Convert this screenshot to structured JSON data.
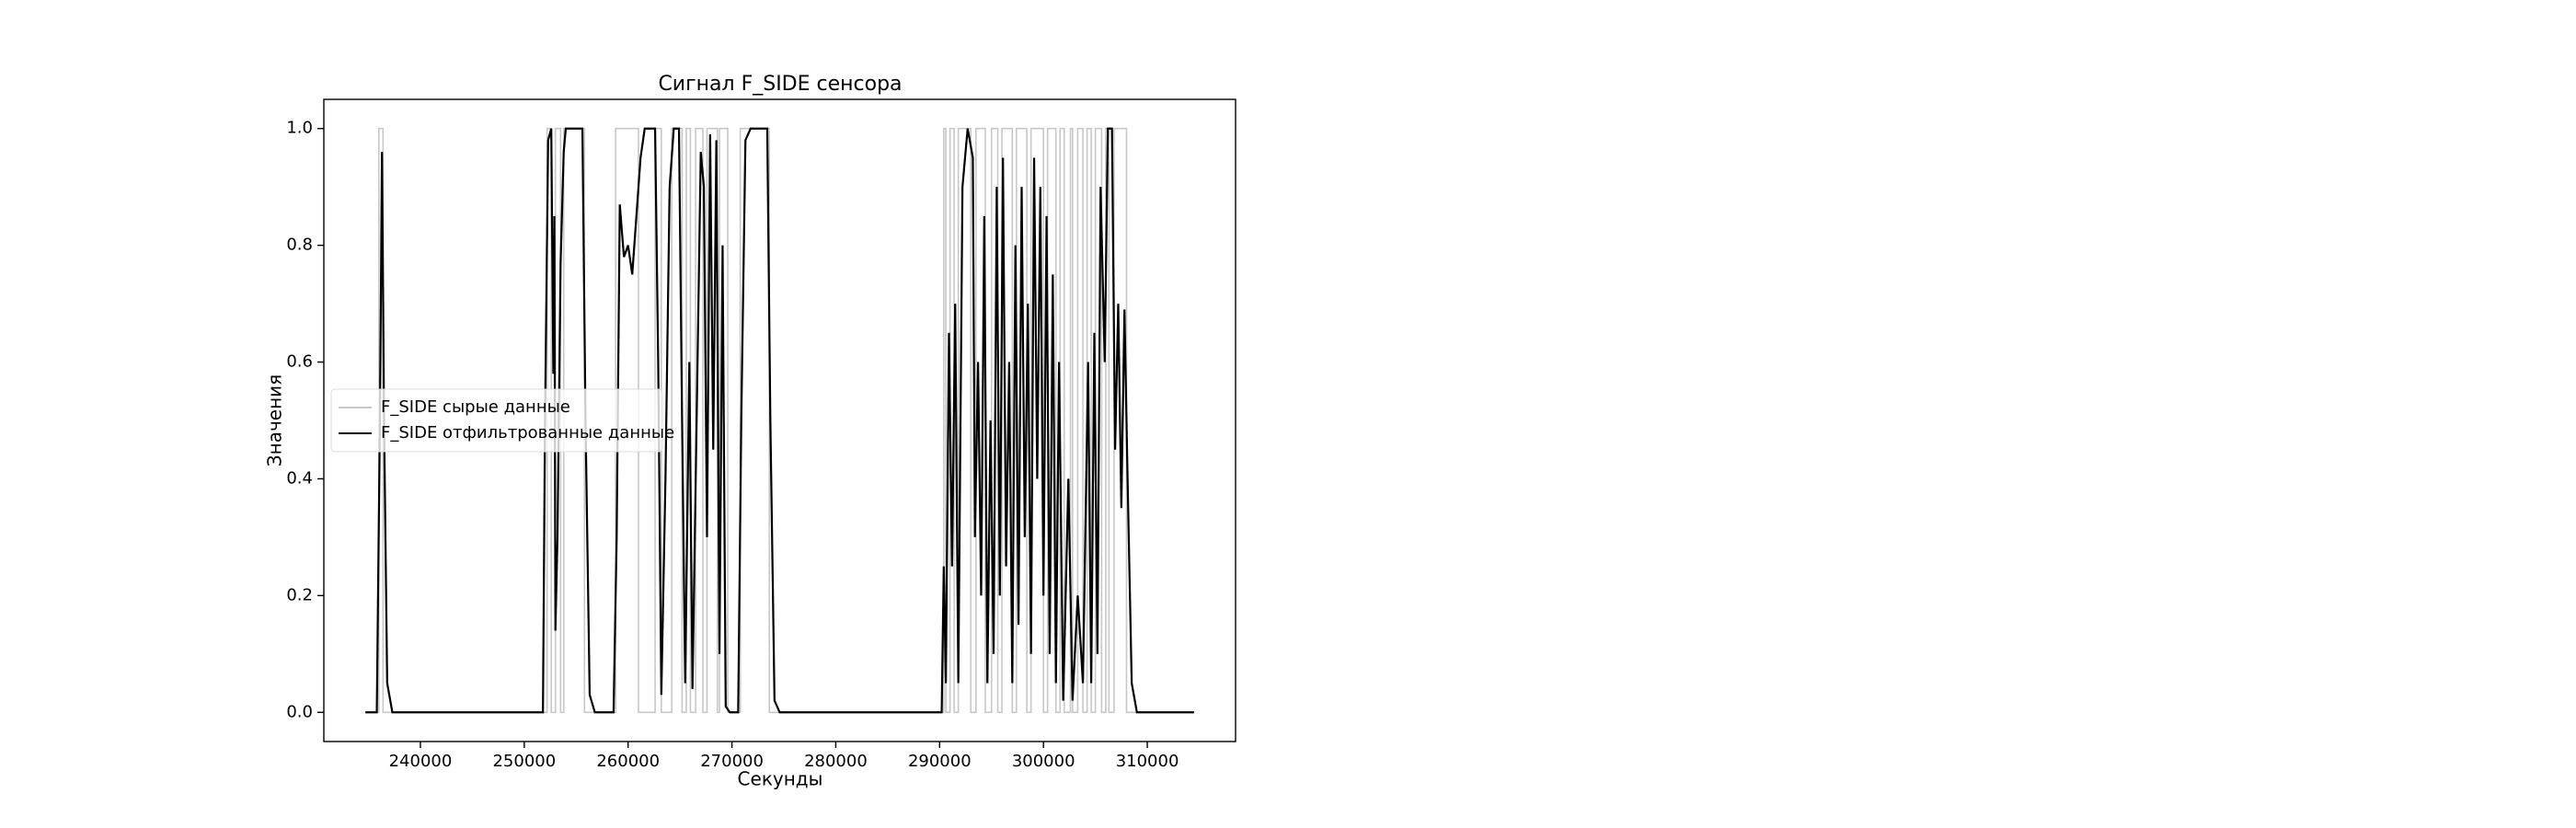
{
  "chart_data": {
    "type": "line",
    "title": "Сигнал F_SIDE сенсора",
    "x_label": "Секунды",
    "y_label": "Значения",
    "xlim": [
      230700,
      318500
    ],
    "ylim": [
      -0.05,
      1.05
    ],
    "xticks": [
      240000,
      250000,
      260000,
      270000,
      280000,
      290000,
      300000,
      310000
    ],
    "yticks": [
      {
        "value": 0,
        "label": "0.0"
      },
      0.2,
      0.4,
      0.6,
      0.8,
      {
        "value": 1,
        "label": "1.0"
      }
    ],
    "legend": "center left",
    "series": [
      {
        "name": "F_SIDE сырые данные",
        "color": "#c8c8c8",
        "x": [
          234700,
          236000,
          236000,
          236400,
          236400,
          252200,
          252200,
          252600,
          252600,
          253000,
          253000,
          253500,
          253500,
          253800,
          253800,
          255800,
          255800,
          258800,
          258800,
          261000,
          261000,
          262600,
          262600,
          263200,
          263200,
          264200,
          264200,
          265200,
          265200,
          265600,
          265600,
          266000,
          266000,
          266500,
          266500,
          267200,
          267200,
          267600,
          267600,
          268600,
          268600,
          268800,
          268800,
          269600,
          269600,
          270800,
          270800,
          273600,
          273600,
          290400,
          290400,
          290600,
          290600,
          291000,
          291000,
          291400,
          291400,
          291800,
          291800,
          293000,
          293000,
          293500,
          293500,
          294400,
          294400,
          295000,
          295000,
          295600,
          295600,
          296000,
          296000,
          297000,
          297000,
          297400,
          297400,
          298400,
          298400,
          298800,
          298800,
          300000,
          300000,
          300400,
          300400,
          301200,
          301200,
          301600,
          301600,
          302000,
          302000,
          302600,
          302600,
          302800,
          302800,
          303300,
          303300,
          303800,
          303800,
          304200,
          304200,
          304600,
          304600,
          305000,
          305000,
          305600,
          305600,
          306000,
          306000,
          306300,
          306300,
          306800,
          306800,
          308000,
          308000,
          314500
        ],
        "values": [
          0,
          0,
          1,
          1,
          0,
          0,
          1,
          1,
          0,
          0,
          1,
          1,
          0,
          0,
          1,
          1,
          0,
          0,
          1,
          1,
          0,
          0,
          1,
          1,
          0,
          0,
          1,
          1,
          0,
          0,
          1,
          1,
          0,
          0,
          1,
          1,
          0,
          0,
          1,
          1,
          0,
          0,
          1,
          1,
          0,
          0,
          1,
          1,
          0,
          0,
          1,
          1,
          0,
          0,
          1,
          1,
          0,
          0,
          1,
          1,
          0,
          0,
          1,
          1,
          0,
          0,
          1,
          1,
          0,
          0,
          1,
          1,
          0,
          0,
          1,
          1,
          0,
          0,
          1,
          1,
          0,
          0,
          1,
          1,
          0,
          0,
          1,
          1,
          0,
          0,
          1,
          1,
          0,
          0,
          1,
          1,
          0,
          0,
          1,
          1,
          0,
          0,
          1,
          1,
          0,
          0,
          1,
          1,
          0,
          0,
          1,
          1,
          0,
          0
        ]
      },
      {
        "name": "F_SIDE отфильтрованные данные",
        "color": "#000000",
        "x": [
          234700,
          235800,
          236100,
          236300,
          236500,
          236800,
          237300,
          251800,
          252000,
          252300,
          252600,
          252800,
          252900,
          253000,
          253200,
          253500,
          253800,
          254000,
          255600,
          255900,
          256300,
          256800,
          258600,
          258900,
          259200,
          259600,
          260000,
          260400,
          260800,
          261200,
          261600,
          262600,
          262900,
          263200,
          263600,
          264000,
          264400,
          264900,
          265200,
          265500,
          265900,
          266200,
          266600,
          267000,
          267300,
          267600,
          267900,
          268200,
          268500,
          268800,
          269100,
          269400,
          269800,
          270600,
          270900,
          271300,
          271800,
          273400,
          273700,
          274100,
          274600,
          290200,
          290400,
          290600,
          290900,
          291200,
          291500,
          291800,
          292200,
          292700,
          293200,
          293400,
          293700,
          294000,
          294300,
          294600,
          294900,
          295200,
          295500,
          295800,
          296100,
          296400,
          296700,
          297000,
          297300,
          297600,
          297900,
          298200,
          298500,
          298800,
          299100,
          299400,
          299700,
          300000,
          300300,
          300600,
          300900,
          301200,
          301500,
          301900,
          302400,
          302800,
          303300,
          303800,
          304300,
          304600,
          304900,
          305200,
          305500,
          305900,
          306200,
          306600,
          306900,
          307200,
          307500,
          307800,
          308100,
          308500,
          309000,
          314500
        ],
        "values": [
          0,
          0,
          0.5,
          0.96,
          0.5,
          0.05,
          0,
          0,
          0.5,
          0.98,
          1,
          0.58,
          0.85,
          0.14,
          0.3,
          0.77,
          0.96,
          1,
          1,
          0.5,
          0.03,
          0,
          0,
          0.3,
          0.87,
          0.78,
          0.8,
          0.75,
          0.85,
          0.95,
          1,
          1,
          0.6,
          0.03,
          0.4,
          0.9,
          1,
          1,
          0.5,
          0.05,
          0.6,
          0.04,
          0.5,
          0.96,
          0.9,
          0.3,
          0.99,
          0.45,
          0.98,
          0.1,
          0.8,
          0.01,
          0,
          0,
          0.5,
          0.98,
          1,
          1,
          0.5,
          0.02,
          0,
          0,
          0.25,
          0.05,
          0.65,
          0.25,
          0.7,
          0.05,
          0.9,
          1,
          0.95,
          0.3,
          0.6,
          0.2,
          0.85,
          0.05,
          0.5,
          0.1,
          0.9,
          0.2,
          0.95,
          0.25,
          0.6,
          0.05,
          0.8,
          0.15,
          0.9,
          0.3,
          0.7,
          0.1,
          0.95,
          0.4,
          0.9,
          0.2,
          0.85,
          0.1,
          0.75,
          0.05,
          0.6,
          0.02,
          0.4,
          0.02,
          0.2,
          0.05,
          0.6,
          0.05,
          0.65,
          0.1,
          0.9,
          0.6,
          1,
          1,
          0.45,
          0.7,
          0.35,
          0.69,
          0.4,
          0.05,
          0,
          0
        ]
      }
    ]
  }
}
